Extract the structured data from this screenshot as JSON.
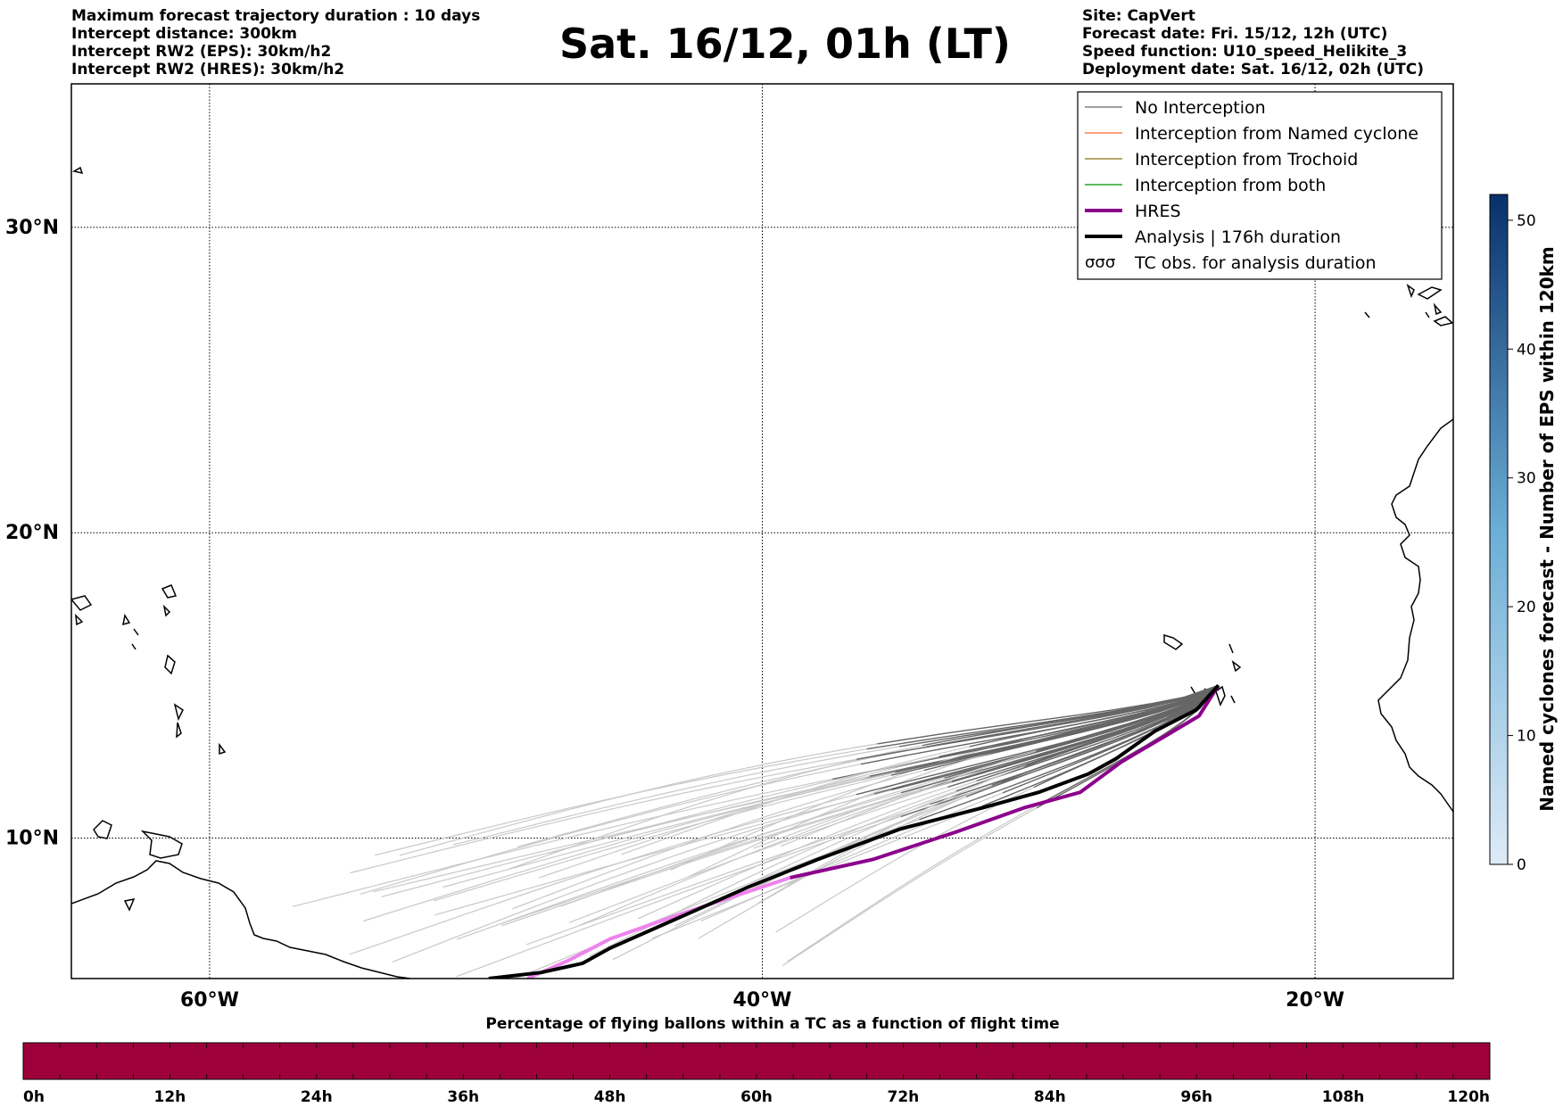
{
  "title": "Sat. 16/12, 01h (LT)",
  "info_left": [
    "Maximum forecast trajectory duration : 10 days",
    "Intercept distance: 300km",
    "Intercept RW2 (EPS):  30km/h2",
    "Intercept RW2 (HRES): 30km/h2"
  ],
  "info_right": [
    "Site: CapVert",
    "Forecast date: Fri. 15/12, 12h (UTC)",
    "Speed function: U10_speed_Helikite_3",
    "Deployment date: Sat. 16/12, 02h (UTC)"
  ],
  "map": {
    "lon_range": [
      -65,
      -15
    ],
    "lat_range": [
      5.4,
      34.7
    ],
    "lat_ticks": [
      {
        "value": 30,
        "label": "30°N"
      },
      {
        "value": 20,
        "label": "20°N"
      },
      {
        "value": 10,
        "label": "10°N"
      }
    ],
    "lon_ticks": [
      {
        "value": -60,
        "label": "60°W"
      },
      {
        "value": -40,
        "label": "40°W"
      },
      {
        "value": -20,
        "label": "20°W"
      }
    ],
    "launch_site": {
      "lon": -23.5,
      "lat": 15.0
    }
  },
  "legend": [
    {
      "label": "No Interception",
      "color": "#808080",
      "style": "thin"
    },
    {
      "label": "Interception from Named cyclone",
      "color": "#ff7f50",
      "style": "thin"
    },
    {
      "label": "Interception from Trochoid",
      "color": "#9a8a3a",
      "style": "thin"
    },
    {
      "label": "Interception from both",
      "color": "#2ca02c",
      "style": "thin"
    },
    {
      "label": "HRES",
      "color": "#8b008b",
      "style": "thick"
    },
    {
      "label": "Analysis | 176h duration",
      "color": "#000000",
      "style": "thick"
    },
    {
      "label": "TC obs. for analysis duration",
      "color": "#000000",
      "style": "symbol"
    }
  ],
  "colorbar_right": {
    "label": "Named cyclones forecast - Number of EPS within 120km",
    "min": 0,
    "max": 52,
    "ticks": [
      "0",
      "10",
      "20",
      "30",
      "40",
      "50"
    ],
    "color_low": "#deebf7",
    "color_high": "#08306b"
  },
  "colorbar_bottom": {
    "label": "Percentage of flying ballons within a TC as a function of flight time",
    "color": "#9e003a",
    "ticks": [
      "0h",
      "12h",
      "24h",
      "36h",
      "48h",
      "60h",
      "72h",
      "84h",
      "96h",
      "108h",
      "120h"
    ]
  },
  "trajectories": {
    "hres": [
      [
        -23.5,
        15.0
      ],
      [
        -24.2,
        14.0
      ],
      [
        -25.5,
        13.3
      ],
      [
        -27.0,
        12.5
      ],
      [
        -28.5,
        11.5
      ],
      [
        -30.5,
        11.0
      ],
      [
        -33.0,
        10.2
      ],
      [
        -36.0,
        9.3
      ],
      [
        -39.0,
        8.7
      ],
      [
        -41.0,
        8.1
      ],
      [
        -43.0,
        7.5
      ],
      [
        -45.5,
        6.7
      ],
      [
        -47.0,
        6.0
      ],
      [
        -48.5,
        5.4
      ]
    ],
    "analysis": [
      [
        -23.5,
        15.0
      ],
      [
        -24.3,
        14.2
      ],
      [
        -25.8,
        13.5
      ],
      [
        -27.2,
        12.6
      ],
      [
        -28.2,
        12.1
      ],
      [
        -30.0,
        11.5
      ],
      [
        -32.0,
        11.0
      ],
      [
        -35.0,
        10.3
      ],
      [
        -38.0,
        9.3
      ],
      [
        -40.5,
        8.4
      ],
      [
        -43.0,
        7.4
      ],
      [
        -45.5,
        6.4
      ],
      [
        -46.5,
        5.9
      ],
      [
        -48.0,
        5.6
      ],
      [
        -49.9,
        5.4
      ]
    ]
  }
}
